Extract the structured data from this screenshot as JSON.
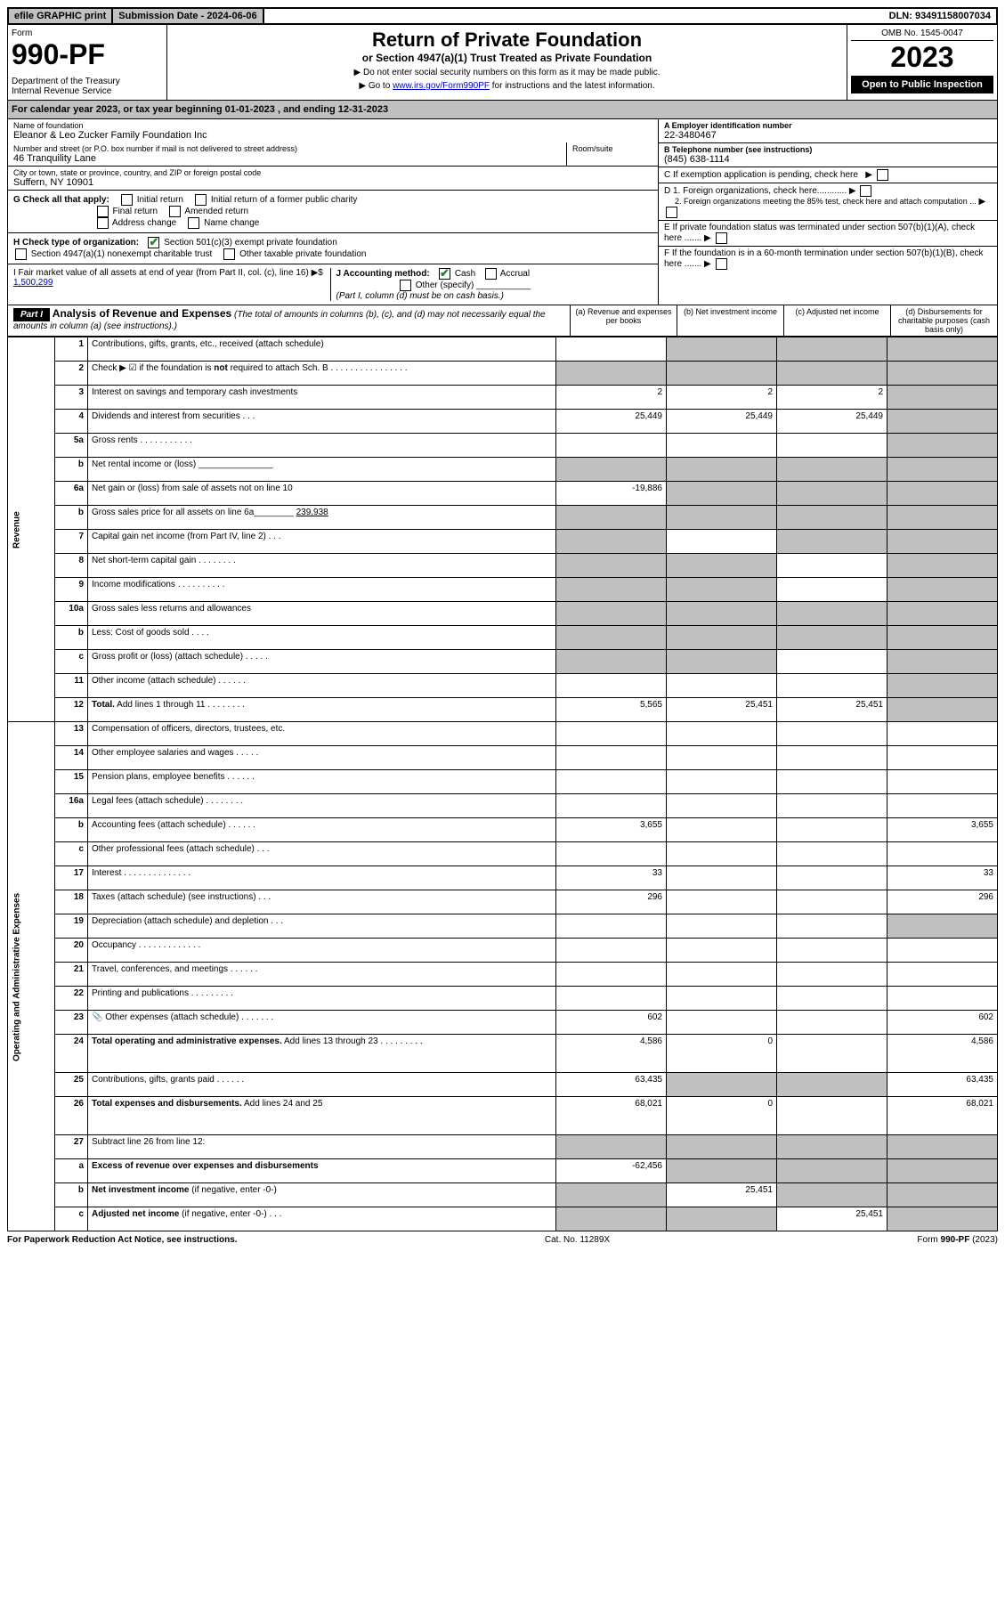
{
  "top": {
    "efile": "efile GRAPHIC print",
    "sub_label": "Submission Date - 2024-06-06",
    "dln": "DLN: 93491158007034"
  },
  "header": {
    "form_label": "Form",
    "form_num": "990-PF",
    "dept": "Department of the Treasury\nInternal Revenue Service",
    "title": "Return of Private Foundation",
    "subtitle": "or Section 4947(a)(1) Trust Treated as Private Foundation",
    "instr1": "▶ Do not enter social security numbers on this form as it may be made public.",
    "instr2": "▶ Go to www.irs.gov/Form990PF for instructions and the latest information.",
    "link": "www.irs.gov/Form990PF",
    "omb": "OMB No. 1545-0047",
    "year": "2023",
    "open": "Open to Public Inspection"
  },
  "cal": "For calendar year 2023, or tax year beginning 01-01-2023                           , and ending 12-31-2023",
  "info": {
    "name_label": "Name of foundation",
    "name": "Eleanor & Leo Zucker Family Foundation Inc",
    "addr_label": "Number and street (or P.O. box number if mail is not delivered to street address)",
    "addr": "46 Tranquility Lane",
    "room_label": "Room/suite",
    "city_label": "City or town, state or province, country, and ZIP or foreign postal code",
    "city": "Suffern, NY  10901",
    "ein_label": "A Employer identification number",
    "ein": "22-3480467",
    "tel_label": "B Telephone number (see instructions)",
    "tel": "(845) 638-1114",
    "c": "C If exemption application is pending, check here",
    "d1": "D 1. Foreign organizations, check here............",
    "d2": "2. Foreign organizations meeting the 85% test, check here and attach computation ...",
    "e": "E  If private foundation status was terminated under section 507(b)(1)(A), check here .......",
    "f": "F  If the foundation is in a 60-month termination under section 507(b)(1)(B), check here .......",
    "g_label": "G Check all that apply:",
    "g_initial": "Initial return",
    "g_initial_former": "Initial return of a former public charity",
    "g_final": "Final return",
    "g_amended": "Amended return",
    "g_addr": "Address change",
    "g_name": "Name change",
    "h_label": "H Check type of organization:",
    "h_501": "Section 501(c)(3) exempt private foundation",
    "h_4947": "Section 4947(a)(1) nonexempt charitable trust",
    "h_other": "Other taxable private foundation",
    "i_label": "I Fair market value of all assets at end of year (from Part II, col. (c), line 16) ▶$",
    "i_val": "1,500,299",
    "j_label": "J Accounting method:",
    "j_cash": "Cash",
    "j_accrual": "Accrual",
    "j_other": "Other (specify)",
    "j_note": "(Part I, column (d) must be on cash basis.)"
  },
  "part1": {
    "label": "Part I",
    "title": "Analysis of Revenue and Expenses",
    "note": "(The total of amounts in columns (b), (c), and (d) may not necessarily equal the amounts in column (a) (see instructions).)",
    "col_a": "(a)   Revenue and expenses per books",
    "col_b": "(b)   Net investment income",
    "col_c": "(c)   Adjusted net income",
    "col_d": "(d)   Disbursements for charitable purposes (cash basis only)"
  },
  "sections": {
    "revenue": "Revenue",
    "opex": "Operating and Administrative Expenses"
  },
  "rows": [
    {
      "n": "1",
      "d": "g",
      "a": "",
      "b": "g",
      "c": "g"
    },
    {
      "n": "2",
      "d": "g",
      "a": "g",
      "b": "g",
      "c": "g"
    },
    {
      "n": "3",
      "d": "g",
      "a": "2",
      "b": "2",
      "c": "2"
    },
    {
      "n": "4",
      "d": "g",
      "a": "25,449",
      "b": "25,449",
      "c": "25,449"
    },
    {
      "n": "5a",
      "d": "g",
      "a": "",
      "b": "",
      "c": ""
    },
    {
      "n": "b",
      "d": "g",
      "a": "g",
      "b": "g",
      "c": "g"
    },
    {
      "n": "6a",
      "d": "g",
      "a": "-19,886",
      "b": "g",
      "c": "g"
    },
    {
      "n": "b",
      "d": "g",
      "a": "g",
      "b": "g",
      "c": "g"
    },
    {
      "n": "7",
      "d": "g",
      "a": "g",
      "b": "",
      "c": "g"
    },
    {
      "n": "8",
      "d": "g",
      "a": "g",
      "b": "g",
      "c": ""
    },
    {
      "n": "9",
      "d": "g",
      "a": "g",
      "b": "g",
      "c": ""
    },
    {
      "n": "10a",
      "d": "g",
      "a": "g",
      "b": "g",
      "c": "g"
    },
    {
      "n": "b",
      "d": "g",
      "a": "g",
      "b": "g",
      "c": "g"
    },
    {
      "n": "c",
      "d": "g",
      "a": "g",
      "b": "g",
      "c": ""
    },
    {
      "n": "11",
      "d": "g",
      "a": "",
      "b": "",
      "c": ""
    },
    {
      "n": "12",
      "d": "g",
      "a": "5,565",
      "b": "25,451",
      "c": "25,451",
      "bold": true
    },
    {
      "n": "13",
      "d": "",
      "a": "",
      "b": "",
      "c": ""
    },
    {
      "n": "14",
      "d": "",
      "a": "",
      "b": "",
      "c": ""
    },
    {
      "n": "15",
      "d": "",
      "a": "",
      "b": "",
      "c": ""
    },
    {
      "n": "16a",
      "d": "",
      "a": "",
      "b": "",
      "c": ""
    },
    {
      "n": "b",
      "d": "3,655",
      "a": "3,655",
      "b": "",
      "c": ""
    },
    {
      "n": "c",
      "d": "",
      "a": "",
      "b": "",
      "c": ""
    },
    {
      "n": "17",
      "d": "33",
      "a": "33",
      "b": "",
      "c": ""
    },
    {
      "n": "18",
      "d": "296",
      "a": "296",
      "b": "",
      "c": ""
    },
    {
      "n": "19",
      "d": "g",
      "a": "",
      "b": "",
      "c": ""
    },
    {
      "n": "20",
      "d": "",
      "a": "",
      "b": "",
      "c": ""
    },
    {
      "n": "21",
      "d": "",
      "a": "",
      "b": "",
      "c": ""
    },
    {
      "n": "22",
      "d": "",
      "a": "",
      "b": "",
      "c": ""
    },
    {
      "n": "23",
      "d": "602",
      "a": "602",
      "b": "",
      "c": "",
      "icon": true
    },
    {
      "n": "24",
      "d": "4,586",
      "a": "4,586",
      "b": "0",
      "c": "",
      "bold": true,
      "tall": true
    },
    {
      "n": "25",
      "d": "63,435",
      "a": "63,435",
      "b": "g",
      "c": "g"
    },
    {
      "n": "26",
      "d": "68,021",
      "a": "68,021",
      "b": "0",
      "c": "",
      "bold": true,
      "tall": true
    },
    {
      "n": "27",
      "d": "g",
      "a": "g",
      "b": "g",
      "c": "g"
    },
    {
      "n": "a",
      "d": "g",
      "a": "-62,456",
      "b": "g",
      "c": "g",
      "bold": true
    },
    {
      "n": "b",
      "d": "g",
      "a": "g",
      "b": "25,451",
      "c": "g",
      "bold": true
    },
    {
      "n": "c",
      "d": "g",
      "a": "g",
      "b": "g",
      "c": "25,451",
      "bold": true
    }
  ],
  "footer": {
    "left": "For Paperwork Reduction Act Notice, see instructions.",
    "mid": "Cat. No. 11289X",
    "right": "Form 990-PF (2023)"
  }
}
